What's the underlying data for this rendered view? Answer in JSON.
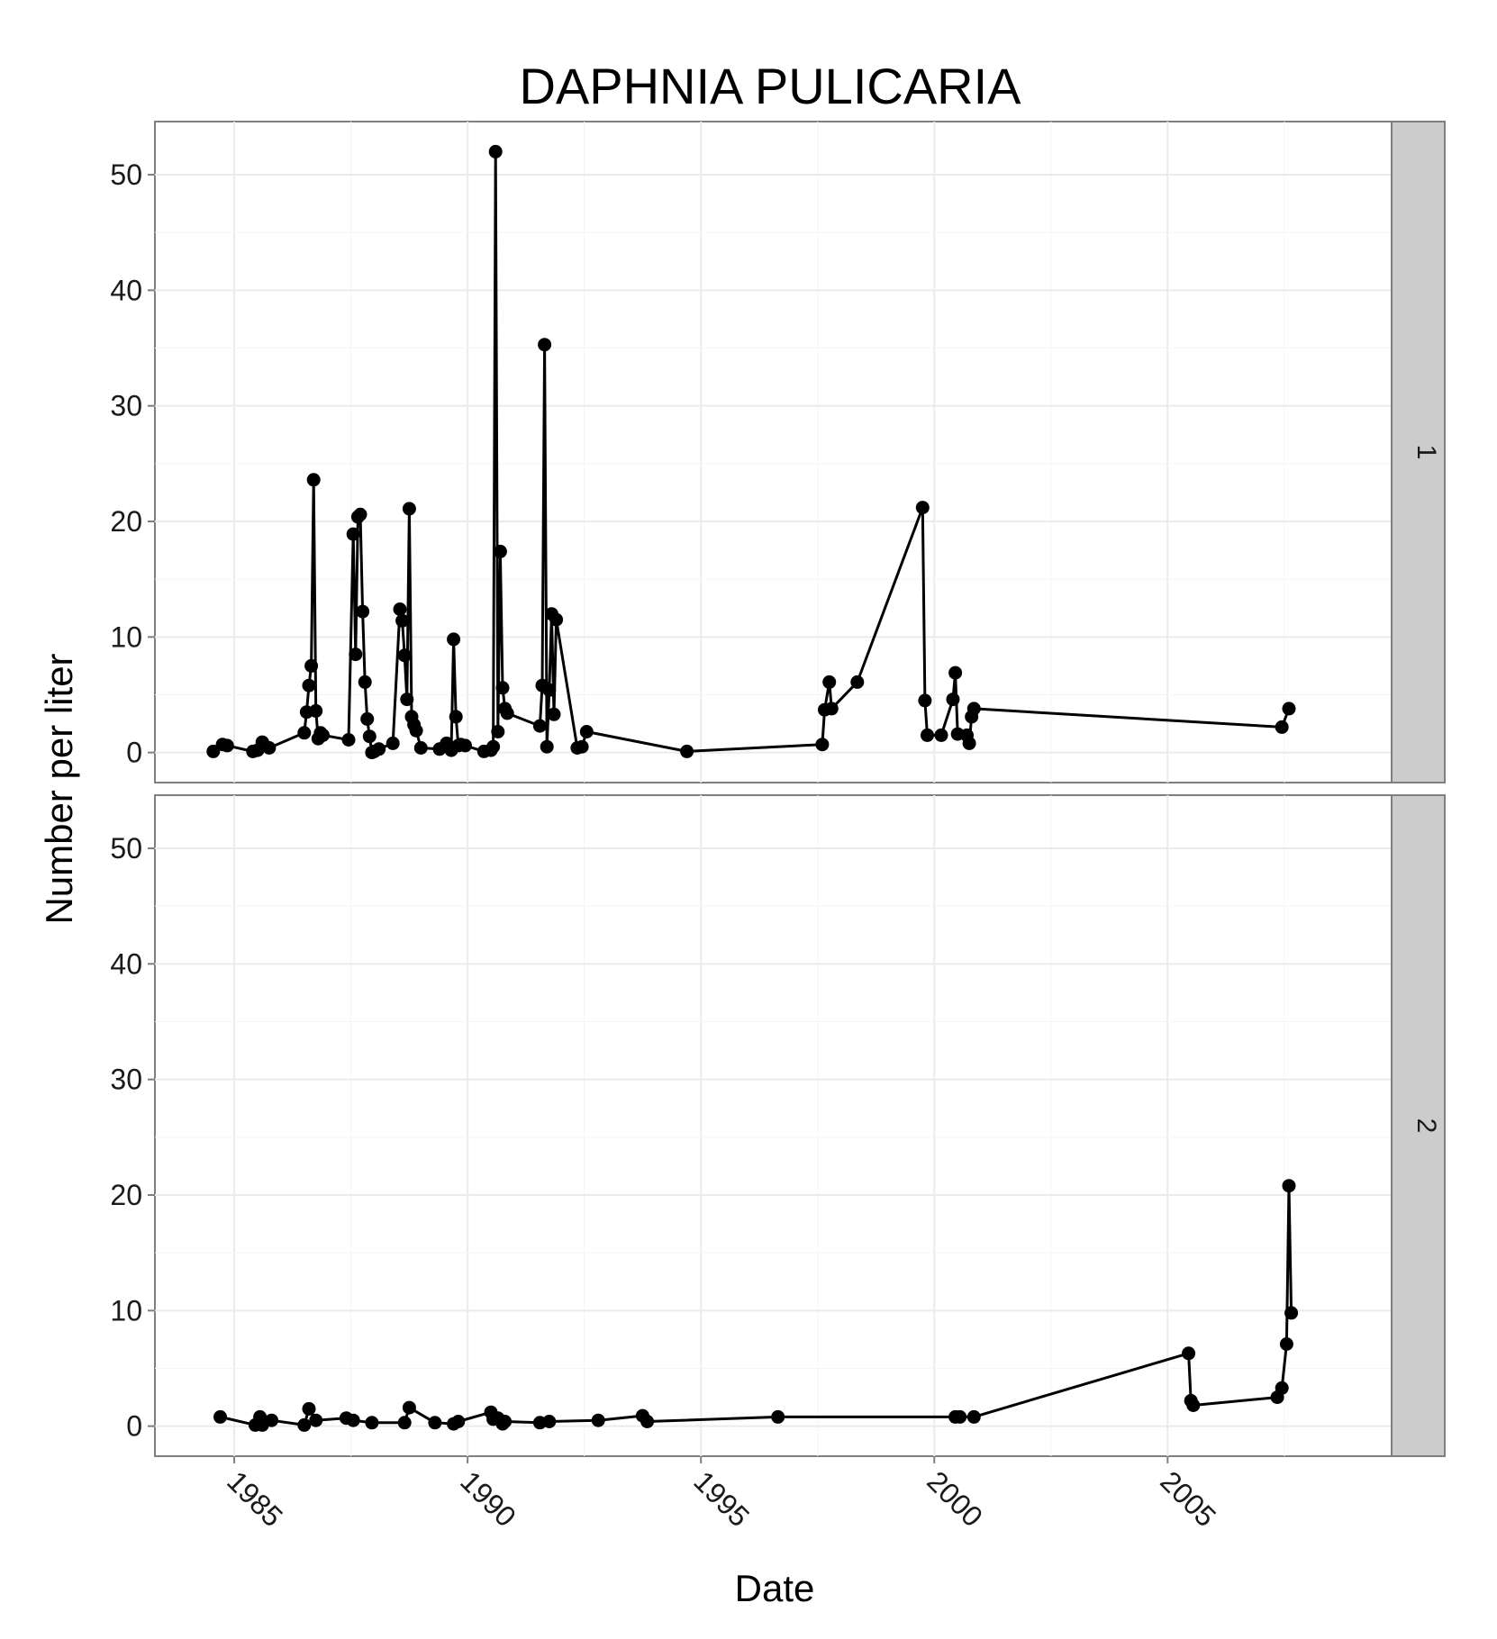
{
  "chart_data": {
    "type": "line",
    "title": "DAPHNIA PULICARIA",
    "xlabel": "Date",
    "ylabel": "Number per liter",
    "x_ticks": [
      "1985",
      "1990",
      "1995",
      "2000",
      "2005"
    ],
    "y_ticks": [
      "0",
      "10",
      "20",
      "30",
      "40",
      "50"
    ],
    "xlim": [
      1983.3,
      2009.8
    ],
    "ylim": [
      -2.6,
      54.6
    ],
    "grid": true,
    "markers": true,
    "panels": [
      {
        "strip": "1",
        "x": [
          1984.55,
          1984.75,
          1984.85,
          1985.4,
          1985.5,
          1985.6,
          1985.65,
          1985.75,
          1986.5,
          1986.55,
          1986.6,
          1986.65,
          1986.7,
          1986.75,
          1986.8,
          1986.85,
          1986.9,
          1987.45,
          1987.55,
          1987.6,
          1987.65,
          1987.7,
          1987.75,
          1987.8,
          1987.85,
          1987.9,
          1987.95,
          1988.0,
          1988.1,
          1988.4,
          1988.55,
          1988.6,
          1988.65,
          1988.7,
          1988.75,
          1988.8,
          1988.85,
          1988.9,
          1989.0,
          1989.4,
          1989.55,
          1989.65,
          1989.7,
          1989.75,
          1989.8,
          1989.85,
          1989.95,
          1990.35,
          1990.5,
          1990.55,
          1990.6,
          1990.65,
          1990.7,
          1990.75,
          1990.8,
          1990.85,
          1991.55,
          1991.6,
          1991.65,
          1991.7,
          1991.75,
          1991.8,
          1991.85,
          1991.9,
          1992.35,
          1992.45,
          1992.55,
          1994.7,
          1997.6,
          1997.65,
          1997.75,
          1997.8,
          1998.35,
          1999.75,
          1999.8,
          1999.85,
          2000.15,
          2000.4,
          2000.45,
          2000.5,
          2000.7,
          2000.75,
          2000.8,
          2000.85,
          2007.45,
          2007.6
        ],
        "values": [
          0.1,
          0.7,
          0.6,
          0.1,
          0.2,
          0.9,
          0.6,
          0.4,
          1.7,
          3.5,
          5.8,
          7.5,
          23.6,
          3.6,
          1.2,
          1.7,
          1.5,
          1.1,
          18.9,
          8.5,
          20.4,
          20.6,
          12.2,
          6.1,
          2.9,
          1.4,
          0.0,
          0.1,
          0.3,
          0.8,
          12.4,
          11.4,
          8.4,
          4.6,
          21.1,
          3.1,
          2.4,
          1.9,
          0.4,
          0.3,
          0.8,
          0.2,
          9.8,
          3.1,
          0.6,
          0.7,
          0.6,
          0.1,
          0.2,
          0.5,
          52.0,
          1.8,
          17.4,
          5.6,
          3.8,
          3.4,
          2.3,
          5.8,
          35.3,
          0.5,
          5.4,
          12.0,
          3.3,
          11.5,
          0.4,
          0.5,
          1.8,
          0.1,
          0.7,
          3.7,
          6.1,
          3.8,
          6.1,
          21.2,
          4.5,
          1.5,
          1.5,
          4.6,
          6.9,
          1.6,
          1.5,
          0.8,
          3.1,
          3.8,
          2.2,
          3.8
        ]
      },
      {
        "strip": "2",
        "x": [
          1984.7,
          1985.45,
          1985.55,
          1985.6,
          1985.8,
          1986.5,
          1986.6,
          1986.75,
          1987.4,
          1987.55,
          1987.95,
          1988.65,
          1988.75,
          1989.3,
          1989.7,
          1989.8,
          1990.5,
          1990.55,
          1990.65,
          1990.75,
          1990.8,
          1991.55,
          1991.75,
          1992.8,
          1993.75,
          1993.85,
          1996.65,
          2000.45,
          2000.55,
          2000.85,
          2005.45,
          2005.5,
          2005.55,
          2007.35,
          2007.45,
          2007.55,
          2007.6,
          2007.65
        ],
        "values": [
          0.8,
          0.1,
          0.8,
          0.1,
          0.5,
          0.1,
          1.5,
          0.5,
          0.7,
          0.5,
          0.3,
          0.3,
          1.6,
          0.3,
          0.2,
          0.4,
          1.2,
          0.6,
          0.7,
          0.2,
          0.4,
          0.3,
          0.4,
          0.5,
          0.9,
          0.4,
          0.8,
          0.8,
          0.8,
          0.8,
          6.3,
          2.2,
          1.8,
          2.5,
          3.3,
          7.1,
          20.8,
          9.8
        ]
      }
    ]
  }
}
